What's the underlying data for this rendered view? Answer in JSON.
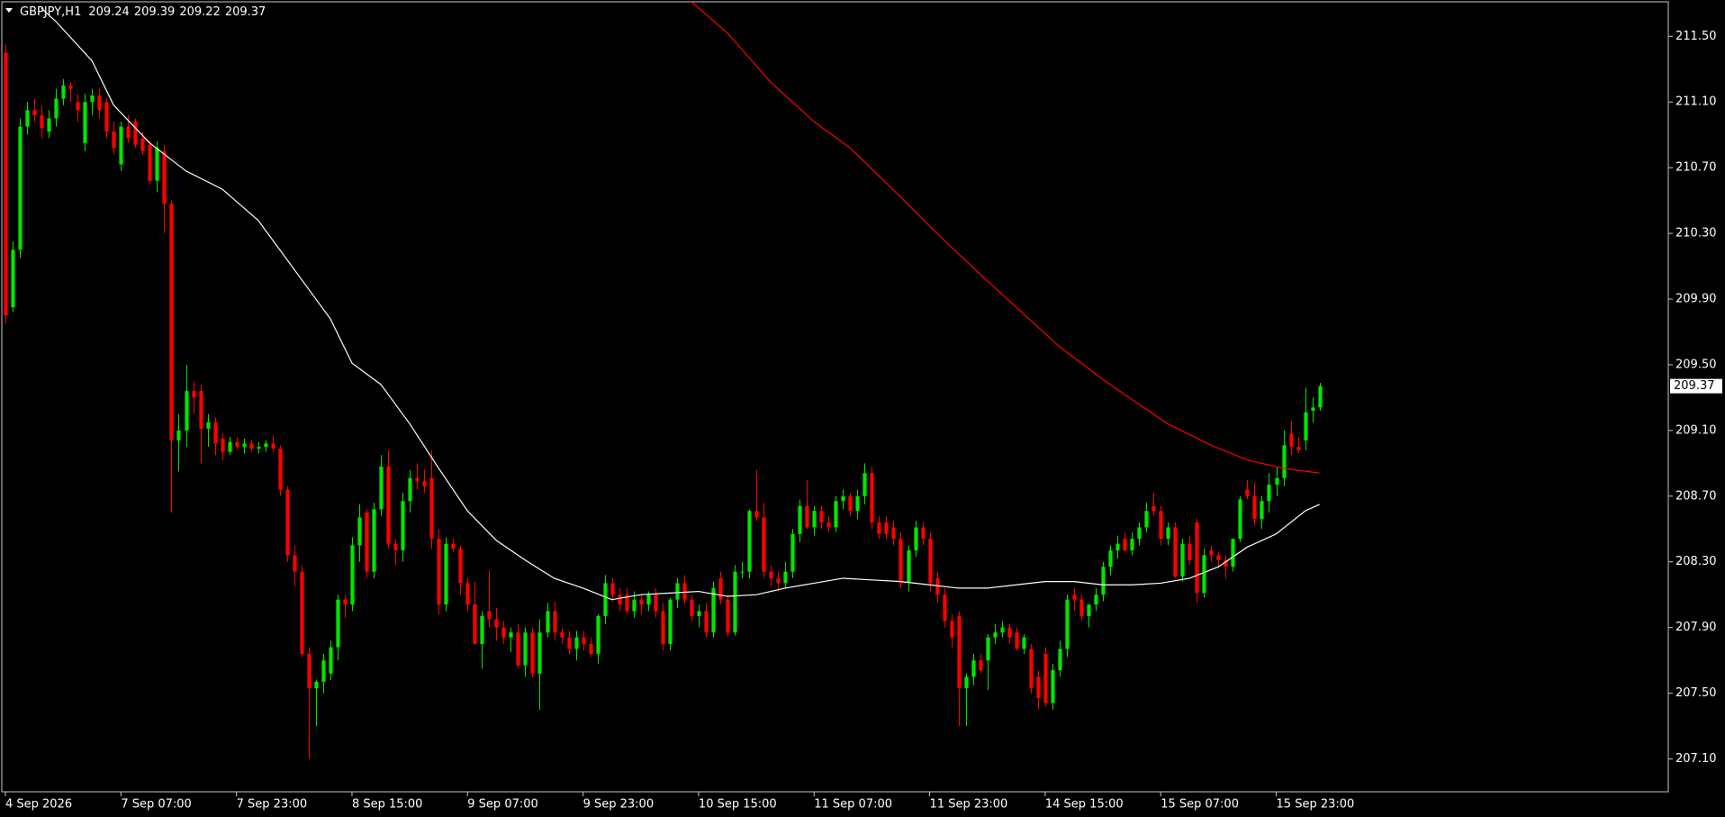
{
  "chart_data": {
    "type": "candlestick",
    "symbol": "GBPJPY,H1",
    "up_color": "#00e600",
    "down_color": "#ff0000",
    "background": "#000000",
    "frame_color": "#c8c8c8",
    "xlim": [
      -0.5,
      230.3
    ],
    "ylim": [
      206.9,
      211.71
    ],
    "yticks": [
      {
        "value": 207.1,
        "label": "207.10"
      },
      {
        "value": 207.5,
        "label": "207.50"
      },
      {
        "value": 207.9,
        "label": "207.90"
      },
      {
        "value": 208.3,
        "label": "208.30"
      },
      {
        "value": 208.7,
        "label": "208.70"
      },
      {
        "value": 209.1,
        "label": "209.10"
      },
      {
        "value": 209.5,
        "label": "209.50"
      },
      {
        "value": 209.9,
        "label": "209.90"
      },
      {
        "value": 210.3,
        "label": "210.30"
      },
      {
        "value": 210.7,
        "label": "210.70"
      },
      {
        "value": 211.1,
        "label": "211.10"
      },
      {
        "value": 211.5,
        "label": "211.50"
      }
    ],
    "xticks": [
      {
        "value": 0,
        "label": "4 Sep 2026"
      },
      {
        "value": 16,
        "label": "7 Sep 07:00"
      },
      {
        "value": 32,
        "label": "7 Sep 23:00"
      },
      {
        "value": 48,
        "label": "8 Sep 15:00"
      },
      {
        "value": 64,
        "label": "9 Sep 07:00"
      },
      {
        "value": 80,
        "label": "9 Sep 23:00"
      },
      {
        "value": 96,
        "label": "10 Sep 15:00"
      },
      {
        "value": 112,
        "label": "11 Sep 07:00"
      },
      {
        "value": 128,
        "label": "11 Sep 23:00"
      },
      {
        "value": 144,
        "label": "14 Sep 15:00"
      },
      {
        "value": 160,
        "label": "15 Sep 07:00"
      },
      {
        "value": 176,
        "label": "15 Sep 23:00"
      }
    ],
    "candles": [
      [
        211.4,
        211.45,
        209.75,
        209.8
      ],
      [
        209.85,
        210.25,
        209.82,
        210.2
      ],
      [
        210.2,
        211.0,
        210.15,
        210.95
      ],
      [
        210.95,
        211.1,
        210.9,
        211.05
      ],
      [
        211.05,
        211.12,
        210.98,
        211.02
      ],
      [
        211.02,
        211.08,
        210.88,
        210.94
      ],
      [
        210.92,
        211.05,
        210.88,
        211.0
      ],
      [
        211.0,
        211.18,
        210.95,
        211.12
      ],
      [
        211.12,
        211.24,
        211.08,
        211.2
      ],
      [
        211.2,
        211.22,
        211.1,
        211.18
      ],
      [
        211.1,
        211.15,
        210.98,
        211.05
      ],
      [
        210.85,
        211.15,
        210.8,
        211.1
      ],
      [
        211.1,
        211.18,
        211.02,
        211.14
      ],
      [
        211.14,
        211.18,
        211.0,
        211.05
      ],
      [
        211.1,
        211.12,
        210.88,
        210.92
      ],
      [
        210.92,
        210.98,
        210.78,
        210.82
      ],
      [
        210.72,
        210.98,
        210.68,
        210.95
      ],
      [
        210.95,
        211.02,
        210.85,
        210.88
      ],
      [
        210.98,
        211.0,
        210.82,
        210.84
      ],
      [
        210.88,
        210.92,
        210.78,
        210.8
      ],
      [
        210.84,
        210.86,
        210.6,
        210.62
      ],
      [
        210.62,
        210.86,
        210.55,
        210.82
      ],
      [
        210.8,
        210.84,
        210.3,
        210.48
      ],
      [
        210.48,
        210.5,
        208.6,
        209.04
      ],
      [
        209.04,
        209.2,
        208.85,
        209.1
      ],
      [
        209.1,
        209.5,
        209.0,
        209.34
      ],
      [
        209.34,
        209.4,
        209.2,
        209.3
      ],
      [
        209.34,
        209.38,
        208.9,
        209.11
      ],
      [
        209.11,
        209.2,
        209.0,
        209.15
      ],
      [
        209.15,
        209.18,
        208.95,
        209.02
      ],
      [
        209.05,
        209.08,
        208.92,
        208.97
      ],
      [
        208.97,
        209.06,
        208.95,
        209.03
      ],
      [
        209.03,
        209.06,
        208.98,
        209.0
      ],
      [
        209.0,
        209.05,
        208.96,
        209.02
      ],
      [
        209.02,
        209.04,
        208.97,
        208.99
      ],
      [
        208.99,
        209.03,
        208.96,
        209.0
      ],
      [
        209.0,
        209.04,
        208.97,
        209.02
      ],
      [
        209.02,
        209.07,
        208.97,
        208.99
      ],
      [
        208.99,
        209.01,
        208.7,
        208.74
      ],
      [
        208.74,
        208.76,
        208.3,
        208.34
      ],
      [
        208.34,
        208.4,
        208.15,
        208.24
      ],
      [
        208.24,
        208.28,
        207.72,
        207.74
      ],
      [
        207.74,
        207.78,
        207.1,
        207.53
      ],
      [
        207.53,
        207.58,
        207.3,
        207.57
      ],
      [
        207.57,
        207.74,
        207.5,
        207.7
      ],
      [
        207.62,
        207.82,
        207.58,
        207.78
      ],
      [
        207.78,
        208.1,
        207.7,
        208.07
      ],
      [
        208.07,
        208.1,
        207.96,
        208.04
      ],
      [
        208.04,
        208.45,
        208.0,
        208.4
      ],
      [
        208.4,
        208.65,
        208.3,
        208.57
      ],
      [
        208.6,
        208.62,
        208.2,
        208.24
      ],
      [
        208.24,
        208.66,
        208.2,
        208.62
      ],
      [
        208.62,
        208.95,
        208.58,
        208.88
      ],
      [
        208.88,
        208.98,
        208.38,
        208.41
      ],
      [
        208.41,
        208.44,
        208.28,
        208.37
      ],
      [
        208.37,
        208.72,
        208.3,
        208.67
      ],
      [
        208.67,
        208.86,
        208.6,
        208.81
      ],
      [
        208.81,
        208.9,
        208.74,
        208.79
      ],
      [
        208.79,
        208.86,
        208.72,
        208.76
      ],
      [
        208.81,
        208.98,
        208.38,
        208.44
      ],
      [
        208.44,
        208.5,
        207.98,
        208.04
      ],
      [
        208.04,
        208.45,
        208.0,
        208.41
      ],
      [
        208.41,
        208.44,
        208.36,
        208.38
      ],
      [
        208.38,
        208.4,
        208.1,
        208.17
      ],
      [
        208.17,
        208.2,
        208.0,
        208.04
      ],
      [
        208.04,
        208.18,
        207.8,
        207.8
      ],
      [
        207.8,
        208.0,
        207.65,
        207.97
      ],
      [
        208.0,
        208.25,
        207.9,
        207.95
      ],
      [
        207.95,
        208.02,
        207.82,
        207.9
      ],
      [
        207.9,
        207.94,
        207.8,
        207.84
      ],
      [
        207.84,
        207.9,
        207.75,
        207.87
      ],
      [
        207.87,
        207.92,
        207.65,
        207.67
      ],
      [
        207.67,
        207.9,
        207.6,
        207.87
      ],
      [
        207.87,
        207.9,
        207.6,
        207.62
      ],
      [
        207.62,
        207.95,
        207.4,
        207.87
      ],
      [
        207.87,
        208.05,
        207.84,
        208.0
      ],
      [
        208.0,
        208.06,
        207.82,
        207.87
      ],
      [
        207.87,
        207.9,
        207.8,
        207.84
      ],
      [
        207.84,
        207.88,
        207.74,
        207.77
      ],
      [
        207.77,
        207.88,
        207.7,
        207.84
      ],
      [
        207.84,
        207.88,
        207.76,
        207.8
      ],
      [
        207.8,
        207.84,
        207.72,
        207.74
      ],
      [
        207.74,
        207.98,
        207.68,
        207.97
      ],
      [
        207.97,
        208.22,
        207.92,
        208.17
      ],
      [
        208.17,
        208.2,
        208.06,
        208.1
      ],
      [
        208.1,
        208.14,
        208.0,
        208.04
      ],
      [
        208.1,
        208.14,
        207.98,
        208.0
      ],
      [
        208.0,
        208.12,
        207.96,
        208.07
      ],
      [
        208.07,
        208.1,
        207.98,
        208.04
      ],
      [
        208.04,
        208.12,
        208.0,
        208.1
      ],
      [
        208.1,
        208.14,
        207.96,
        208.0
      ],
      [
        208.0,
        208.05,
        207.76,
        207.8
      ],
      [
        207.8,
        208.08,
        207.76,
        208.07
      ],
      [
        208.07,
        208.2,
        208.02,
        208.17
      ],
      [
        208.17,
        208.22,
        208.04,
        208.07
      ],
      [
        208.07,
        208.1,
        207.94,
        207.97
      ],
      [
        207.97,
        208.04,
        207.9,
        208.0
      ],
      [
        208.0,
        208.05,
        207.84,
        207.87
      ],
      [
        207.87,
        208.18,
        207.84,
        208.14
      ],
      [
        208.2,
        208.24,
        208.04,
        208.07
      ],
      [
        208.07,
        208.1,
        207.84,
        207.87
      ],
      [
        207.87,
        208.28,
        207.85,
        208.24
      ],
      [
        208.24,
        208.3,
        208.2,
        208.24
      ],
      [
        208.24,
        208.62,
        208.2,
        208.61
      ],
      [
        208.61,
        208.86,
        208.55,
        208.57
      ],
      [
        208.57,
        208.66,
        208.2,
        208.24
      ],
      [
        208.24,
        208.28,
        208.15,
        208.2
      ],
      [
        208.2,
        208.24,
        208.12,
        208.17
      ],
      [
        208.17,
        208.3,
        208.14,
        208.24
      ],
      [
        208.24,
        208.5,
        208.2,
        208.47
      ],
      [
        208.47,
        208.68,
        208.42,
        208.64
      ],
      [
        208.64,
        208.8,
        208.5,
        208.51
      ],
      [
        208.51,
        208.64,
        208.46,
        208.61
      ],
      [
        208.61,
        208.64,
        208.5,
        208.54
      ],
      [
        208.54,
        208.58,
        208.48,
        208.51
      ],
      [
        208.51,
        208.7,
        208.48,
        208.67
      ],
      [
        208.67,
        208.74,
        208.62,
        208.7
      ],
      [
        208.7,
        208.72,
        208.58,
        208.61
      ],
      [
        208.61,
        208.74,
        208.56,
        208.7
      ],
      [
        208.7,
        208.9,
        208.65,
        208.84
      ],
      [
        208.84,
        208.88,
        208.5,
        208.54
      ],
      [
        208.54,
        208.58,
        208.44,
        208.47
      ],
      [
        208.54,
        208.58,
        208.44,
        208.47
      ],
      [
        208.51,
        208.55,
        208.4,
        208.44
      ],
      [
        208.44,
        208.48,
        208.14,
        208.17
      ],
      [
        208.17,
        208.4,
        208.12,
        208.37
      ],
      [
        208.37,
        208.55,
        208.33,
        208.51
      ],
      [
        208.51,
        208.54,
        208.4,
        208.44
      ],
      [
        208.44,
        208.48,
        208.12,
        208.17
      ],
      [
        208.2,
        208.24,
        208.05,
        208.1
      ],
      [
        208.1,
        208.14,
        207.9,
        207.94
      ],
      [
        207.94,
        207.98,
        207.78,
        207.84
      ],
      [
        207.97,
        208.0,
        207.3,
        207.53
      ],
      [
        207.53,
        207.62,
        207.3,
        207.6
      ],
      [
        207.6,
        207.74,
        207.55,
        207.7
      ],
      [
        207.7,
        207.74,
        207.62,
        207.64
      ],
      [
        207.7,
        207.86,
        207.52,
        207.84
      ],
      [
        207.84,
        207.92,
        207.8,
        207.87
      ],
      [
        207.87,
        207.94,
        207.84,
        207.9
      ],
      [
        207.9,
        207.92,
        207.8,
        207.84
      ],
      [
        207.87,
        207.9,
        207.76,
        207.77
      ],
      [
        207.77,
        207.86,
        207.74,
        207.84
      ],
      [
        207.77,
        207.8,
        207.5,
        207.53
      ],
      [
        207.6,
        207.64,
        207.4,
        207.47
      ],
      [
        207.74,
        207.78,
        207.42,
        207.44
      ],
      [
        207.44,
        207.68,
        207.4,
        207.64
      ],
      [
        207.64,
        207.82,
        207.6,
        207.77
      ],
      [
        207.77,
        208.1,
        207.72,
        208.07
      ],
      [
        208.1,
        208.14,
        208.0,
        208.07
      ],
      [
        208.07,
        208.1,
        207.94,
        207.97
      ],
      [
        207.97,
        208.04,
        207.9,
        208.04
      ],
      [
        208.04,
        208.14,
        208.0,
        208.1
      ],
      [
        208.1,
        208.3,
        208.06,
        208.27
      ],
      [
        208.27,
        208.4,
        208.22,
        208.37
      ],
      [
        208.37,
        208.46,
        208.32,
        208.41
      ],
      [
        208.44,
        208.48,
        208.36,
        208.37
      ],
      [
        208.37,
        208.48,
        208.34,
        208.44
      ],
      [
        208.44,
        208.54,
        208.4,
        208.51
      ],
      [
        208.51,
        208.66,
        208.48,
        208.61
      ],
      [
        208.64,
        208.72,
        208.58,
        208.61
      ],
      [
        208.61,
        208.64,
        208.4,
        208.44
      ],
      [
        208.44,
        208.54,
        208.4,
        208.51
      ],
      [
        208.51,
        208.54,
        208.2,
        208.21
      ],
      [
        208.21,
        208.44,
        208.18,
        208.41
      ],
      [
        208.41,
        208.46,
        208.28,
        208.31
      ],
      [
        208.54,
        208.56,
        208.05,
        208.11
      ],
      [
        208.11,
        208.38,
        208.08,
        208.34
      ],
      [
        208.37,
        208.4,
        208.3,
        208.34
      ],
      [
        208.34,
        208.36,
        208.26,
        208.31
      ],
      [
        208.31,
        208.34,
        208.2,
        208.27
      ],
      [
        208.27,
        208.44,
        208.24,
        208.44
      ],
      [
        208.44,
        208.7,
        208.42,
        208.68
      ],
      [
        208.74,
        208.8,
        208.68,
        208.7
      ],
      [
        208.7,
        208.78,
        208.52,
        208.56
      ],
      [
        208.56,
        208.7,
        208.5,
        208.67
      ],
      [
        208.67,
        208.84,
        208.6,
        208.77
      ],
      [
        208.77,
        208.88,
        208.7,
        208.81
      ],
      [
        208.81,
        209.1,
        208.76,
        209.01
      ],
      [
        209.08,
        209.16,
        208.95,
        209.0
      ],
      [
        209.0,
        209.06,
        208.96,
        208.98
      ],
      [
        209.04,
        209.36,
        208.98,
        209.21
      ],
      [
        209.22,
        209.3,
        209.15,
        209.24
      ],
      [
        209.24,
        209.39,
        209.22,
        209.37
      ]
    ],
    "series": [
      {
        "color": "#ffffff",
        "x": [
          5,
          7,
          12,
          15,
          20,
          25,
          30,
          35,
          40,
          45,
          48,
          52,
          56,
          60,
          64,
          68,
          72,
          76,
          80,
          84,
          88,
          92,
          96,
          100,
          104,
          108,
          112,
          116,
          120,
          124,
          128,
          132,
          136,
          140,
          144,
          148,
          152,
          156,
          160,
          164,
          168,
          172,
          176,
          180,
          182
        ],
        "values": [
          211.67,
          211.59,
          211.35,
          211.08,
          210.85,
          210.68,
          210.57,
          210.38,
          210.08,
          209.78,
          209.51,
          209.38,
          209.14,
          208.87,
          208.61,
          208.43,
          208.31,
          208.2,
          208.14,
          208.07,
          208.1,
          208.11,
          208.12,
          208.09,
          208.1,
          208.14,
          208.17,
          208.2,
          208.19,
          208.18,
          208.16,
          208.14,
          208.14,
          208.16,
          208.18,
          208.18,
          208.16,
          208.16,
          208.17,
          208.2,
          208.27,
          208.39,
          208.47,
          208.61,
          208.65
        ]
      },
      {
        "color": "#ff0000",
        "x": [
          95,
          100,
          106,
          112,
          117,
          124,
          129,
          136,
          141,
          146,
          152,
          157,
          161,
          167,
          172,
          177,
          182
        ],
        "values": [
          211.71,
          211.52,
          211.22,
          210.98,
          210.82,
          210.52,
          210.3,
          210.01,
          209.81,
          209.61,
          209.41,
          209.26,
          209.14,
          209.01,
          208.92,
          208.87,
          208.84
        ]
      }
    ]
  }
}
